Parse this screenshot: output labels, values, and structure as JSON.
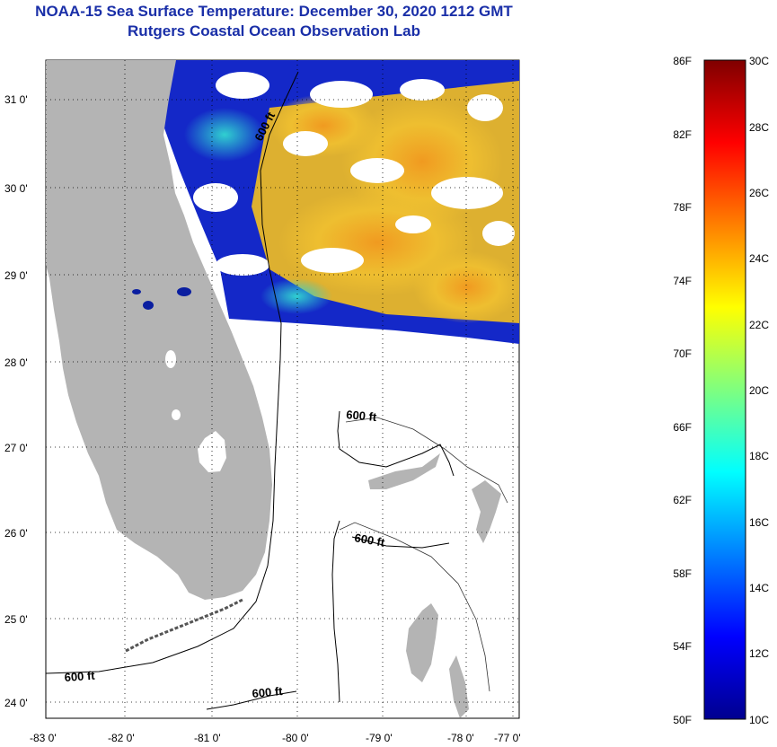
{
  "title": {
    "line1": "NOAA-15 Sea Surface Temperature:  December 30, 2020 1212 GMT",
    "line2": "Rutgers Coastal Ocean Observation Lab"
  },
  "map": {
    "lat_labels": [
      "31 0'",
      "30 0'",
      "29 0'",
      "28 0'",
      "27 0'",
      "26 0'",
      "25 0'",
      "24 0'"
    ],
    "lon_labels": [
      "-83 0'",
      "-82 0'",
      "-81 0'",
      "-80 0'",
      "-79 0'",
      "-78 0'",
      "-77 0'"
    ],
    "contour_labels": [
      "600 ft",
      "600 ft",
      "600 ft",
      "600 ft",
      "600 ft"
    ],
    "land_color": "#b4b4b4",
    "grid": "dotted"
  },
  "colorbar": {
    "fahrenheit": [
      "86F",
      "82F",
      "78F",
      "74F",
      "70F",
      "66F",
      "62F",
      "58F",
      "54F",
      "50F"
    ],
    "celsius": [
      "30C",
      "28C",
      "26C",
      "24C",
      "22C",
      "20C",
      "18C",
      "16C",
      "14C",
      "12C",
      "10C"
    ]
  }
}
